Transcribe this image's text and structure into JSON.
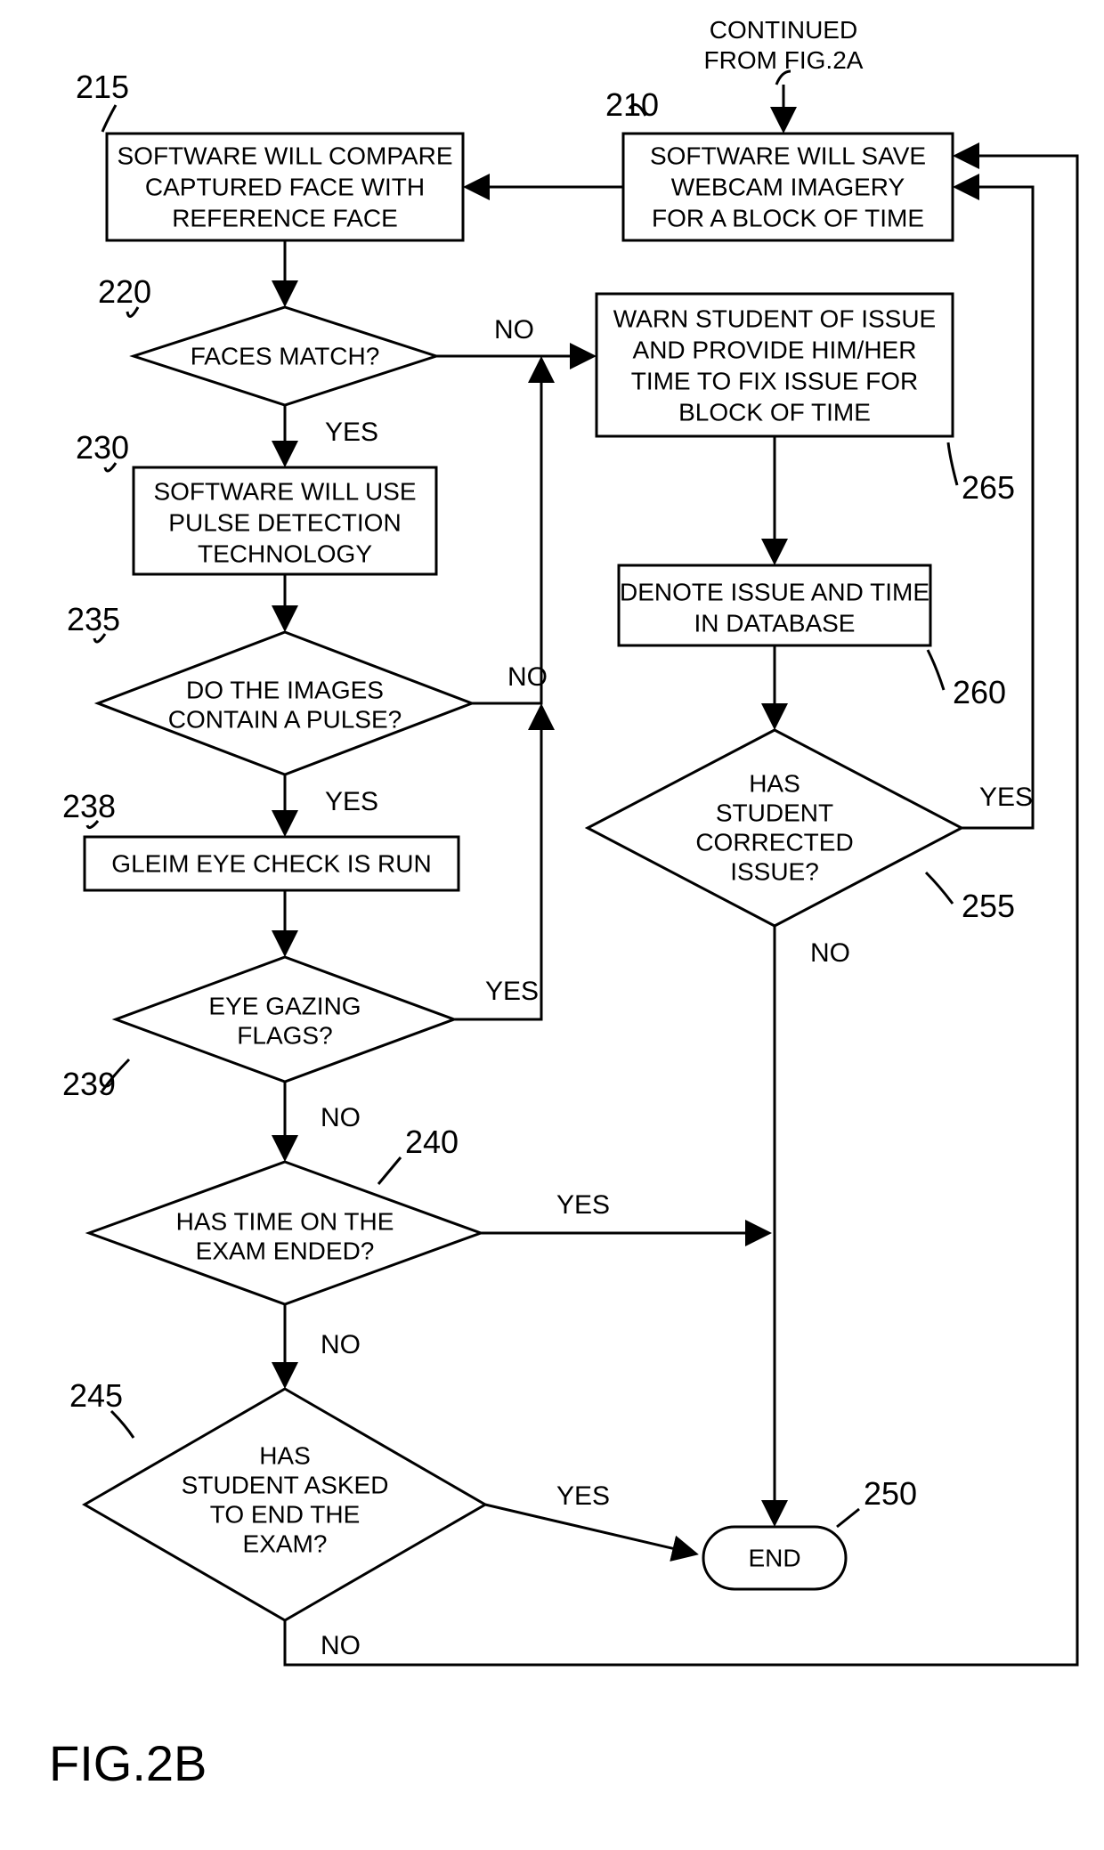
{
  "figure_label": "FIG.2B",
  "continued_from": "CONTINUED FROM FIG.2A",
  "colors": {
    "stroke": "#000000",
    "background": "#ffffff"
  },
  "stroke_width": 3,
  "font_family": "Arial, Helvetica, sans-serif",
  "nodes": {
    "n210": {
      "ref": "210",
      "type": "rect",
      "lines": [
        "SOFTWARE WILL SAVE",
        "WEBCAM IMAGERY",
        "FOR A BLOCK OF TIME"
      ]
    },
    "n215": {
      "ref": "215",
      "type": "rect",
      "lines": [
        "SOFTWARE WILL COMPARE",
        "CAPTURED FACE WITH",
        "REFERENCE FACE"
      ]
    },
    "n220": {
      "ref": "220",
      "type": "diamond",
      "lines": [
        "FACES MATCH?"
      ]
    },
    "n230": {
      "ref": "230",
      "type": "rect",
      "lines": [
        "SOFTWARE WILL USE",
        "PULSE DETECTION",
        "TECHNOLOGY"
      ]
    },
    "n235": {
      "ref": "235",
      "type": "diamond",
      "lines": [
        "DO THE IMAGES",
        "CONTAIN A PULSE?"
      ]
    },
    "n238": {
      "ref": "238",
      "type": "rect",
      "lines": [
        "GLEIM EYE CHECK IS RUN"
      ]
    },
    "n239": {
      "ref": "239",
      "type": "diamond",
      "lines": [
        "EYE GAZING",
        "FLAGS?"
      ]
    },
    "n240": {
      "ref": "240",
      "type": "diamond",
      "lines": [
        "HAS TIME ON THE",
        "EXAM ENDED?"
      ]
    },
    "n245": {
      "ref": "245",
      "type": "diamond",
      "lines": [
        "HAS",
        "STUDENT ASKED",
        "TO END THE",
        "EXAM?"
      ]
    },
    "n250": {
      "ref": "250",
      "type": "terminal",
      "lines": [
        "END"
      ]
    },
    "n255": {
      "ref": "255",
      "type": "diamond",
      "lines": [
        "HAS",
        "STUDENT",
        "CORRECTED",
        "ISSUE?"
      ]
    },
    "n260": {
      "ref": "260",
      "type": "rect",
      "lines": [
        "DENOTE ISSUE AND TIME",
        "IN DATABASE"
      ]
    },
    "n265": {
      "ref": "265",
      "type": "rect",
      "lines": [
        "WARN STUDENT OF ISSUE",
        "AND PROVIDE HIM/HER",
        "TIME TO FIX ISSUE FOR",
        "BLOCK OF TIME"
      ]
    }
  },
  "edges": {
    "yes": "YES",
    "no": "NO"
  }
}
